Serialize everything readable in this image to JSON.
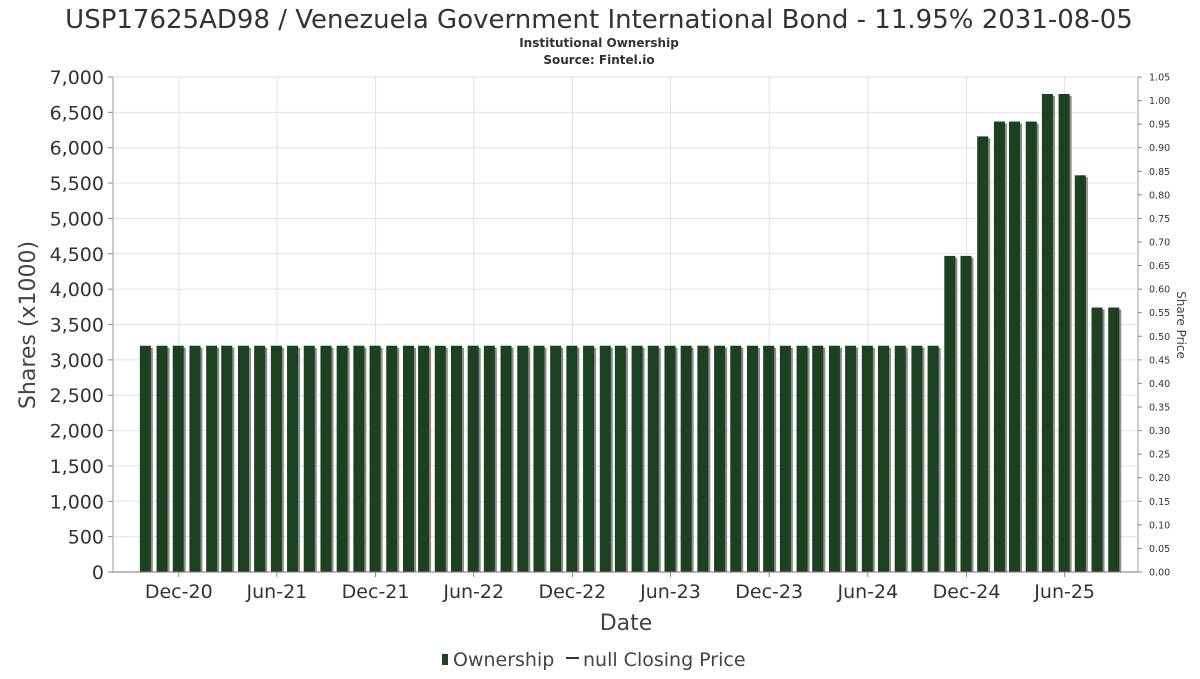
{
  "chart_data": {
    "type": "bar",
    "title": "USP17625AD98 / Venezuela Government International Bond - 11.95% 2031-08-05",
    "subtitle": "Institutional Ownership",
    "source": "Source: Fintel.io",
    "xlabel": "Date",
    "ylabel": "Shares (x1000)",
    "y2label": "Share Price",
    "ylim": [
      0,
      7000
    ],
    "y2lim": [
      0,
      1.05
    ],
    "xlim": [
      "2020-08-01",
      "2025-10-15"
    ],
    "grid": true,
    "legend_position": "bottom",
    "y_ticks": [
      0,
      500,
      1000,
      1500,
      2000,
      2500,
      3000,
      3500,
      4000,
      4500,
      5000,
      5500,
      6000,
      6500,
      7000
    ],
    "y_tick_labels": [
      "0",
      "500",
      "1,000",
      "1,500",
      "2,000",
      "2,500",
      "3,000",
      "3,500",
      "4,000",
      "4,500",
      "5,000",
      "5,500",
      "6,000",
      "6,500",
      "7,000"
    ],
    "y2_ticks": [
      0,
      0.05,
      0.1,
      0.15,
      0.2,
      0.25,
      0.3,
      0.35,
      0.4,
      0.45,
      0.5,
      0.55,
      0.6,
      0.65,
      0.7,
      0.75,
      0.8,
      0.85,
      0.9,
      0.95,
      1.0,
      1.05
    ],
    "y2_tick_labels": [
      "0.00",
      "0.05",
      "0.10",
      "0.15",
      "0.20",
      "0.25",
      "0.30",
      "0.35",
      "0.40",
      "0.45",
      "0.50",
      "0.55",
      "0.60",
      "0.65",
      "0.70",
      "0.75",
      "0.80",
      "0.85",
      "0.90",
      "0.95",
      "1.00",
      "1.05"
    ],
    "x_ticks": [
      {
        "date": "2020-12-01",
        "label": "Dec-20"
      },
      {
        "date": "2021-06-01",
        "label": "Jun-21"
      },
      {
        "date": "2021-12-01",
        "label": "Dec-21"
      },
      {
        "date": "2022-06-01",
        "label": "Jun-22"
      },
      {
        "date": "2022-12-01",
        "label": "Dec-22"
      },
      {
        "date": "2023-06-01",
        "label": "Jun-23"
      },
      {
        "date": "2023-12-01",
        "label": "Dec-23"
      },
      {
        "date": "2024-06-01",
        "label": "Jun-24"
      },
      {
        "date": "2024-12-01",
        "label": "Dec-24"
      },
      {
        "date": "2025-06-01",
        "label": "Jun-25"
      }
    ],
    "series": [
      {
        "name": "Ownership",
        "color": "#1a4220",
        "shadow_color": "#8c8c8c",
        "dates": [
          "2020-09-30",
          "2020-10-31",
          "2020-11-30",
          "2020-12-31",
          "2021-01-31",
          "2021-02-28",
          "2021-03-31",
          "2021-04-30",
          "2021-05-31",
          "2021-06-30",
          "2021-07-31",
          "2021-08-31",
          "2021-09-30",
          "2021-10-31",
          "2021-11-30",
          "2021-12-31",
          "2022-01-31",
          "2022-02-28",
          "2022-03-31",
          "2022-04-30",
          "2022-05-31",
          "2022-06-30",
          "2022-07-31",
          "2022-08-31",
          "2022-09-30",
          "2022-10-31",
          "2022-11-30",
          "2022-12-31",
          "2023-01-31",
          "2023-02-28",
          "2023-03-31",
          "2023-04-30",
          "2023-05-31",
          "2023-06-30",
          "2023-07-31",
          "2023-08-31",
          "2023-09-30",
          "2023-10-31",
          "2023-11-30",
          "2023-12-31",
          "2024-01-31",
          "2024-02-29",
          "2024-03-31",
          "2024-04-30",
          "2024-05-31",
          "2024-06-30",
          "2024-07-31",
          "2024-08-31",
          "2024-09-30",
          "2024-10-31",
          "2024-11-30",
          "2024-12-31",
          "2025-01-31",
          "2025-02-28",
          "2025-03-31",
          "2025-04-30",
          "2025-05-31",
          "2025-06-30",
          "2025-07-31",
          "2025-08-31"
        ],
        "values": [
          3200,
          3200,
          3200,
          3200,
          3200,
          3200,
          3200,
          3200,
          3200,
          3200,
          3200,
          3200,
          3200,
          3200,
          3200,
          3200,
          3200,
          3200,
          3200,
          3200,
          3200,
          3200,
          3200,
          3200,
          3200,
          3200,
          3200,
          3200,
          3200,
          3200,
          3200,
          3200,
          3200,
          3200,
          3200,
          3200,
          3200,
          3200,
          3200,
          3200,
          3200,
          3200,
          3200,
          3200,
          3200,
          3200,
          3200,
          3200,
          3200,
          4470,
          4470,
          6160,
          6370,
          6370,
          6370,
          6760,
          6760,
          5610,
          3740,
          3740
        ]
      },
      {
        "name": "null Closing Price",
        "color": "#333333",
        "values": []
      }
    ]
  }
}
